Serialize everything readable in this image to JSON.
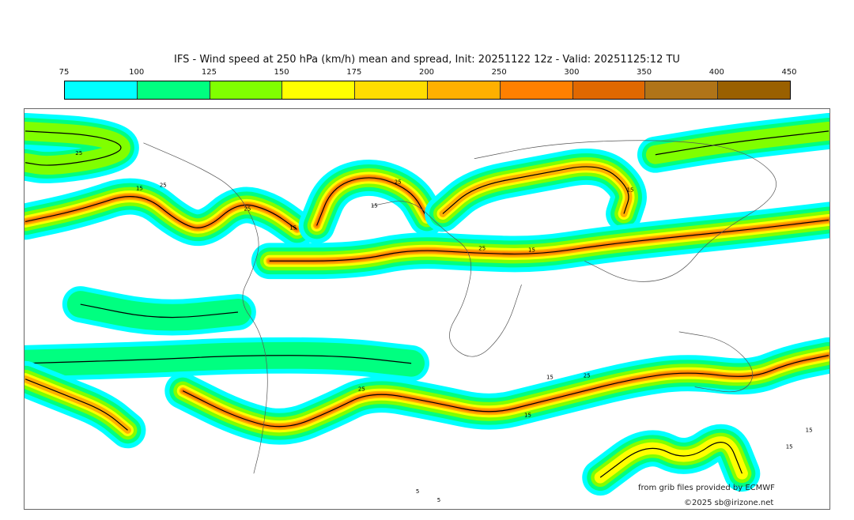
{
  "title": "IFS - Wind speed at 250 hPa (km/h) mean and spread, Init: 20251122 12z - Valid: 20251125:12 TU",
  "legend": {
    "ticks": [
      "75",
      "100",
      "125",
      "150",
      "175",
      "200",
      "250",
      "300",
      "350",
      "400",
      "450"
    ],
    "colors": [
      "#00ffff",
      "#00ff80",
      "#80ff00",
      "#ffff00",
      "#ffdd00",
      "#ffb000",
      "#ff8000",
      "#e06800",
      "#b07418",
      "#9a6000"
    ]
  },
  "contour_labels": [
    "25",
    "15",
    "25",
    "25",
    "15",
    "25",
    "15",
    "25",
    "15",
    "15",
    "25",
    "15",
    "15",
    "25",
    "15",
    "5",
    "15",
    "5"
  ],
  "credits": {
    "source": "from grib files provided by ECMWF",
    "copyright": "©2025 sb@irizone.net"
  }
}
